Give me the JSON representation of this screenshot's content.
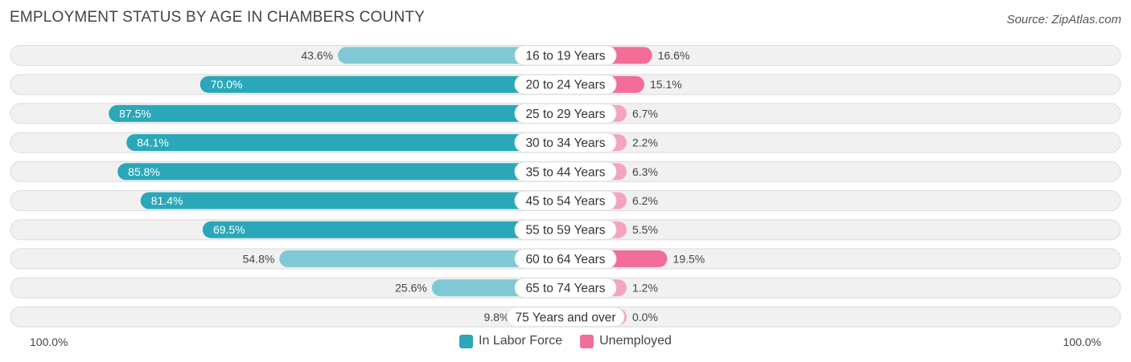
{
  "header": {
    "title": "EMPLOYMENT STATUS BY AGE IN CHAMBERS COUNTY",
    "source": "Source: ZipAtlas.com"
  },
  "axis": {
    "left_label": "100.0%",
    "right_label": "100.0%"
  },
  "legend": {
    "labor_label": "In Labor Force",
    "unemployed_label": "Unemployed"
  },
  "colors": {
    "labor_strong": "#2aa7b8",
    "labor_light": "#7ec9d4",
    "unemployed_strong": "#f26d97",
    "unemployed_light": "#f5a4be",
    "row_bg": "#f1f1f1",
    "row_border": "#dcdcdc"
  },
  "chart_data": {
    "type": "bar",
    "orientation": "diverging-horizontal",
    "title": "EMPLOYMENT STATUS BY AGE IN CHAMBERS COUNTY",
    "categories": [
      "16 to 19 Years",
      "20 to 24 Years",
      "25 to 29 Years",
      "30 to 34 Years",
      "35 to 44 Years",
      "45 to 54 Years",
      "55 to 59 Years",
      "60 to 64 Years",
      "65 to 74 Years",
      "75 Years and over"
    ],
    "series": [
      {
        "name": "In Labor Force",
        "values": [
          43.6,
          70.0,
          87.5,
          84.1,
          85.8,
          81.4,
          69.5,
          54.8,
          25.6,
          9.8
        ],
        "labels": [
          "43.6%",
          "70.0%",
          "87.5%",
          "84.1%",
          "85.8%",
          "81.4%",
          "69.5%",
          "54.8%",
          "25.6%",
          "9.8%"
        ]
      },
      {
        "name": "Unemployed",
        "values": [
          16.6,
          15.1,
          6.7,
          2.2,
          6.3,
          6.2,
          5.5,
          19.5,
          1.2,
          0.0
        ],
        "labels": [
          "16.6%",
          "15.1%",
          "6.7%",
          "2.2%",
          "6.3%",
          "6.2%",
          "5.5%",
          "19.5%",
          "1.2%",
          "0.0%"
        ]
      }
    ],
    "xlim": [
      -100,
      100
    ],
    "legend_position": "bottom-center"
  }
}
